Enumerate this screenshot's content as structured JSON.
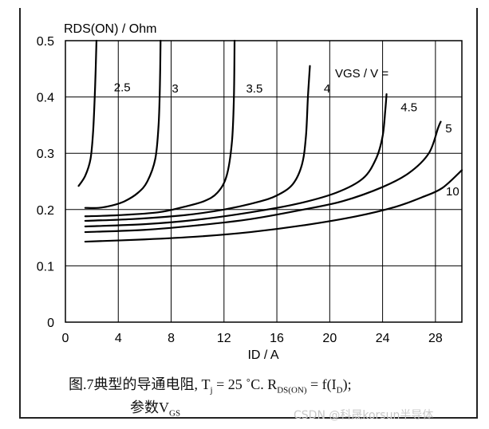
{
  "chart_data": {
    "type": "line",
    "ylabel": "RDS(ON) / Ohm",
    "xlabel": "ID / A",
    "legend_title": "VGS / V =",
    "xlim": [
      0,
      30
    ],
    "ylim": [
      0,
      0.5
    ],
    "xticks": [
      0,
      4,
      8,
      12,
      16,
      20,
      24,
      28
    ],
    "yticks": [
      0,
      0.1,
      0.2,
      0.3,
      0.4,
      0.5
    ],
    "xtick_labels": [
      "0",
      "4",
      "8",
      "12",
      "16",
      "20",
      "24",
      "28"
    ],
    "ytick_labels": [
      "0",
      "0.1",
      "0.2",
      "0.3",
      "0.4",
      "0.5"
    ],
    "grid": true,
    "series": [
      {
        "name": "2.5",
        "label_at": [
          4.3,
          0.41
        ],
        "points": [
          [
            1,
            0.242
          ],
          [
            1.5,
            0.26
          ],
          [
            1.9,
            0.29
          ],
          [
            2.1,
            0.34
          ],
          [
            2.25,
            0.42
          ],
          [
            2.35,
            0.5
          ]
        ]
      },
      {
        "name": "3",
        "label_at": [
          8.3,
          0.408
        ],
        "points": [
          [
            1.5,
            0.203
          ],
          [
            2.5,
            0.203
          ],
          [
            3.5,
            0.207
          ],
          [
            4.5,
            0.215
          ],
          [
            5.5,
            0.23
          ],
          [
            6.2,
            0.25
          ],
          [
            6.8,
            0.29
          ],
          [
            7.05,
            0.35
          ],
          [
            7.15,
            0.42
          ],
          [
            7.2,
            0.5
          ]
        ]
      },
      {
        "name": "3.5",
        "label_at": [
          14.3,
          0.408
        ],
        "points": [
          [
            1.5,
            0.188
          ],
          [
            4,
            0.19
          ],
          [
            7,
            0.195
          ],
          [
            9,
            0.205
          ],
          [
            10.5,
            0.215
          ],
          [
            11.5,
            0.23
          ],
          [
            12.2,
            0.26
          ],
          [
            12.6,
            0.32
          ],
          [
            12.75,
            0.4
          ],
          [
            12.8,
            0.5
          ]
        ]
      },
      {
        "name": "4",
        "label_at": [
          19.8,
          0.408
        ],
        "points": [
          [
            1.5,
            0.18
          ],
          [
            5,
            0.183
          ],
          [
            9,
            0.19
          ],
          [
            12,
            0.2
          ],
          [
            14.5,
            0.213
          ],
          [
            16,
            0.225
          ],
          [
            17.2,
            0.245
          ],
          [
            17.9,
            0.28
          ],
          [
            18.2,
            0.33
          ],
          [
            18.35,
            0.4
          ],
          [
            18.5,
            0.455
          ]
        ]
      },
      {
        "name": "4.5",
        "label_at": [
          26,
          0.375
        ],
        "points": [
          [
            1.5,
            0.17
          ],
          [
            6,
            0.174
          ],
          [
            10,
            0.182
          ],
          [
            14,
            0.195
          ],
          [
            17.5,
            0.21
          ],
          [
            20.5,
            0.23
          ],
          [
            22.5,
            0.255
          ],
          [
            23.5,
            0.29
          ],
          [
            24,
            0.33
          ],
          [
            24.2,
            0.375
          ],
          [
            24.3,
            0.405
          ]
        ]
      },
      {
        "name": "5",
        "label_at": [
          29,
          0.337
        ],
        "points": [
          [
            1.5,
            0.16
          ],
          [
            6,
            0.164
          ],
          [
            10,
            0.172
          ],
          [
            14,
            0.183
          ],
          [
            18,
            0.2
          ],
          [
            21,
            0.215
          ],
          [
            24,
            0.24
          ],
          [
            26,
            0.265
          ],
          [
            27.5,
            0.3
          ],
          [
            28.2,
            0.345
          ],
          [
            28.4,
            0.356
          ]
        ]
      },
      {
        "name": "10",
        "label_at": [
          29.3,
          0.225
        ],
        "points": [
          [
            1.5,
            0.143
          ],
          [
            6,
            0.147
          ],
          [
            10,
            0.152
          ],
          [
            14,
            0.16
          ],
          [
            18,
            0.172
          ],
          [
            22,
            0.188
          ],
          [
            25,
            0.205
          ],
          [
            27,
            0.222
          ],
          [
            28.5,
            0.238
          ],
          [
            30,
            0.27
          ]
        ]
      }
    ]
  },
  "caption": {
    "line1_prefix": "图.7典型的导通电阻, T",
    "line1_sub_j": "j",
    "line1_middle": " = 25 ˚C. R",
    "line1_sub_ds": "DS(ON)",
    "line1_suffix_a": " = f(I",
    "line1_sub_d": "D",
    "line1_suffix_b": ");",
    "line2_prefix": "参数V",
    "line2_sub_gs": "GS"
  },
  "watermark": "CSDN @科晟korsun半导体"
}
